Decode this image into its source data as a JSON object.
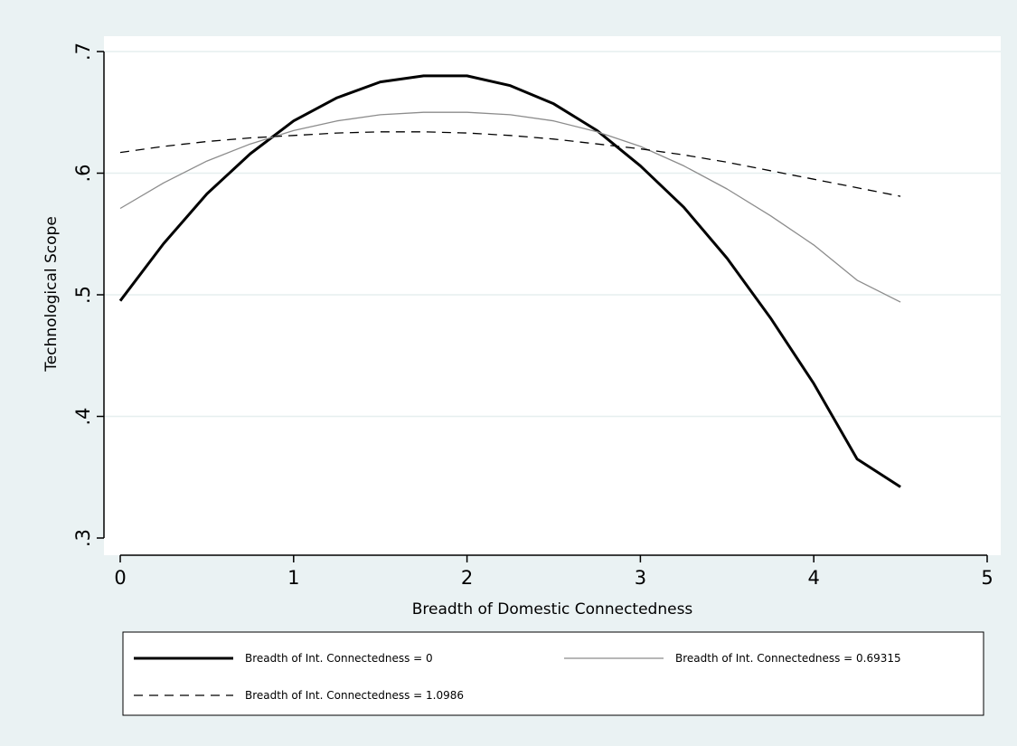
{
  "chart_data": {
    "type": "line",
    "xlabel": "Breadth of Domestic Connectedness",
    "ylabel": "Technological Scope",
    "xlim": [
      0,
      5
    ],
    "ylim": [
      0.3,
      0.7
    ],
    "xticks": [
      0,
      1,
      2,
      3,
      4,
      5
    ],
    "xtick_labels": [
      "0",
      "1",
      "2",
      "3",
      "4",
      "5"
    ],
    "yticks": [
      0.3,
      0.4,
      0.5,
      0.6,
      0.7
    ],
    "ytick_labels": [
      ".3",
      ".4",
      ".5",
      ".6",
      ".7"
    ],
    "grid": true,
    "legend_position": "bottom",
    "x": [
      0,
      0.25,
      0.5,
      0.75,
      1.0,
      1.25,
      1.5,
      1.75,
      2.0,
      2.25,
      2.5,
      2.75,
      3.0,
      3.25,
      3.5,
      3.75,
      4.0,
      4.25,
      4.5
    ],
    "series": [
      {
        "name": "Breadth of Int. Connectedness = 0",
        "style": "thick-solid",
        "color": "#000000",
        "values": [
          0.495,
          0.542,
          0.583,
          0.616,
          0.643,
          0.662,
          0.675,
          0.68,
          0.68,
          0.672,
          0.657,
          0.635,
          0.606,
          0.572,
          0.53,
          0.481,
          0.427,
          0.365,
          0.342
        ]
      },
      {
        "name": "Breadth of Int. Connectedness = 0.69315",
        "style": "thin-solid",
        "color": "#8c8c8c",
        "values": [
          0.571,
          0.592,
          0.61,
          0.624,
          0.635,
          0.643,
          0.648,
          0.65,
          0.65,
          0.648,
          0.643,
          0.634,
          0.622,
          0.606,
          0.587,
          0.565,
          0.541,
          0.512,
          0.494
        ]
      },
      {
        "name": "Breadth of Int. Connectedness = 1.0986",
        "style": "dashed",
        "color": "#000000",
        "values": [
          0.617,
          0.622,
          0.626,
          0.629,
          0.631,
          0.633,
          0.634,
          0.634,
          0.633,
          0.631,
          0.628,
          0.624,
          0.62,
          0.615,
          0.609,
          0.602,
          0.595,
          0.588,
          0.581
        ]
      }
    ]
  },
  "colors": {
    "background": "#eaf2f3",
    "plot_background": "#ffffff",
    "grid": "#e6efef"
  }
}
